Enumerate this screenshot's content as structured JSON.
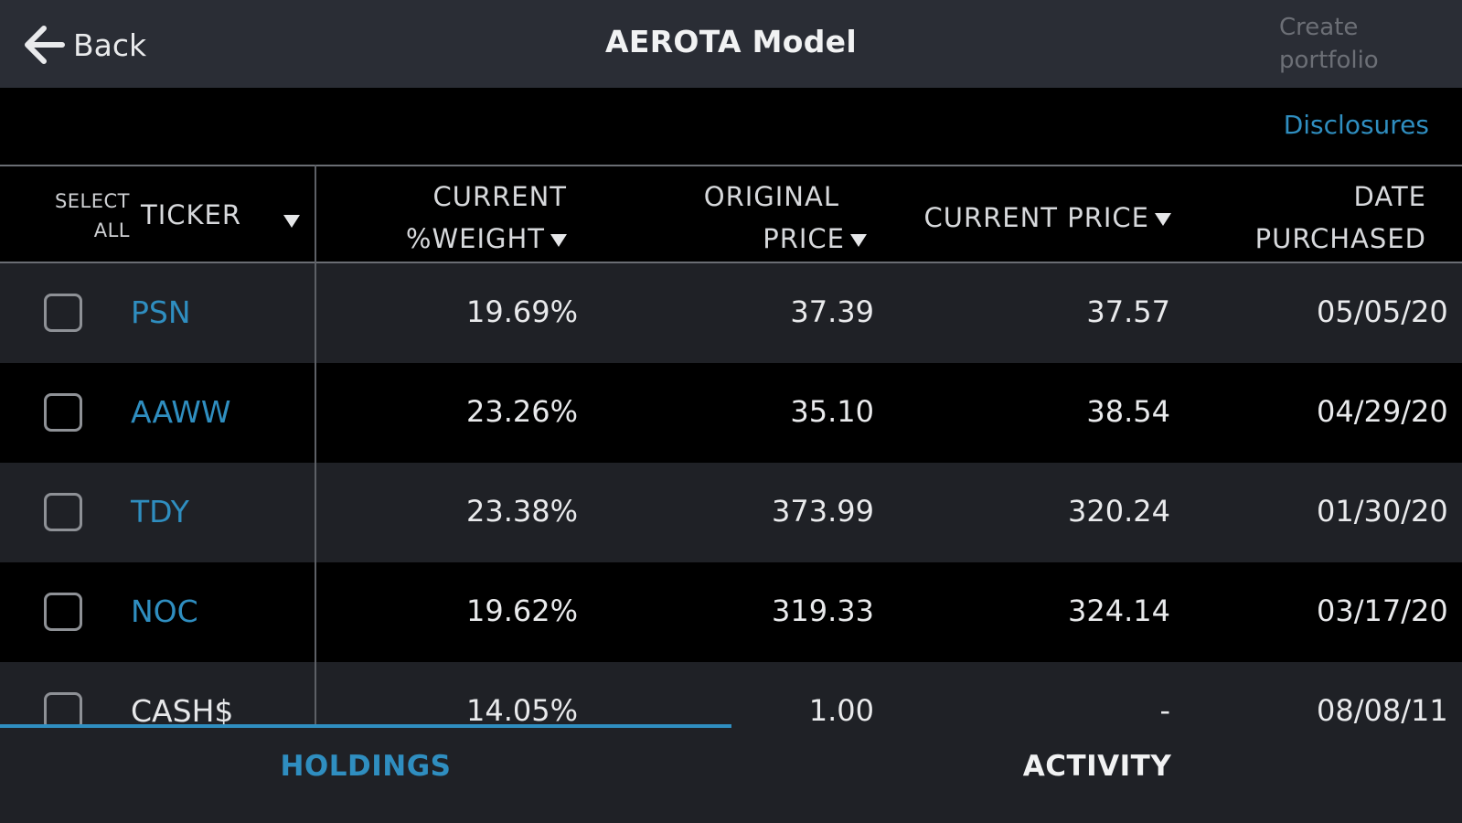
{
  "nav": {
    "back_label": "Back",
    "title": "AEROTA Model",
    "create_line1": "Create",
    "create_line2": "portfolio"
  },
  "disclosures_label": "Disclosures",
  "table": {
    "select_all_line1": "SELECT",
    "select_all_line2": "ALL",
    "columns": {
      "ticker": "TICKER",
      "weight_line1": "CURRENT",
      "weight_line2": "%WEIGHT",
      "orig_line1": "ORIGINAL",
      "orig_line2": "PRICE",
      "current_price": "CURRENT PRICE",
      "date_line1": "DATE",
      "date_line2": "PURCHASED"
    },
    "rows": [
      {
        "ticker": "PSN",
        "weight": "19.69%",
        "orig": "37.39",
        "current": "37.57",
        "date": "05/05/20"
      },
      {
        "ticker": "AAWW",
        "weight": "23.26%",
        "orig": "35.10",
        "current": "38.54",
        "date": "04/29/20"
      },
      {
        "ticker": "TDY",
        "weight": "23.38%",
        "orig": "373.99",
        "current": "320.24",
        "date": "01/30/20"
      },
      {
        "ticker": "NOC",
        "weight": "19.62%",
        "orig": "319.33",
        "current": "324.14",
        "date": "03/17/20"
      },
      {
        "ticker": "CASH$",
        "weight": "14.05%",
        "orig": "1.00",
        "current": "-",
        "date": "08/08/11"
      }
    ]
  },
  "tabs": {
    "holdings": "HOLDINGS",
    "activity": "ACTIVITY"
  },
  "colors": {
    "accent": "#2f8ec0",
    "navbar": "#2a2d35",
    "row_alt": "#1f2126"
  }
}
